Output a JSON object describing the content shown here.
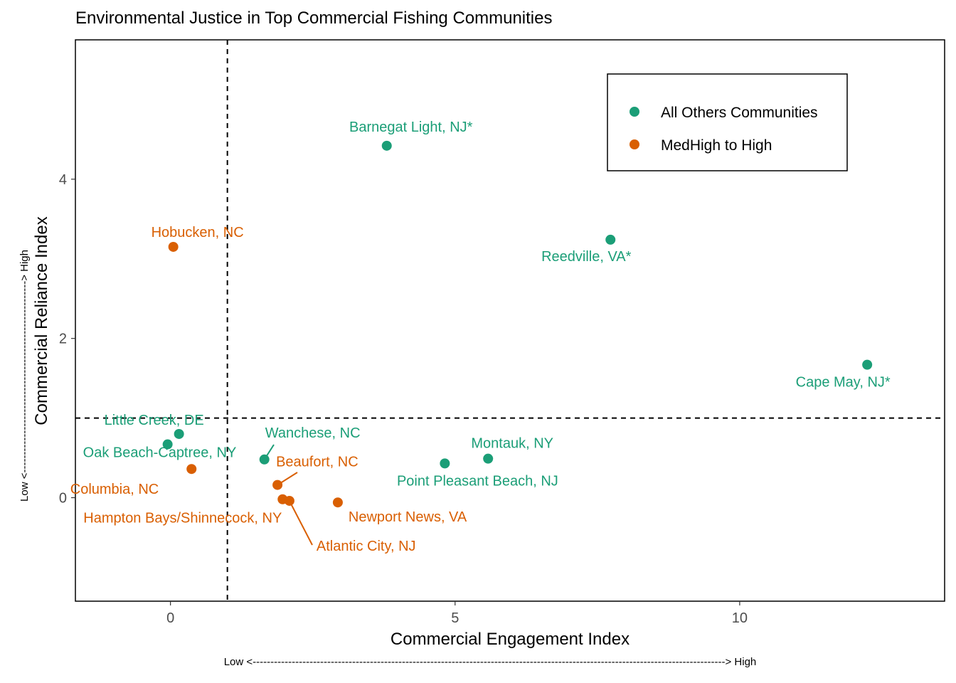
{
  "chart_data": {
    "type": "scatter",
    "title": "Environmental Justice in Top Commercial Fishing Communities",
    "xlabel": "Commercial Engagement Index",
    "ylabel": "Commercial Reliance Index",
    "x_note": "Low <-------------------------------------------------------------------------------------------------------------------------------------> High",
    "y_note": "Low <------------------------------------------------------> High",
    "xlim": [
      -1.67,
      13.6
    ],
    "ylim": [
      -1.3,
      5.75
    ],
    "xticks": [
      0,
      5,
      10
    ],
    "yticks": [
      0,
      2,
      4
    ],
    "xtick_labels": [
      "0",
      "5",
      "10"
    ],
    "ytick_labels": [
      "0",
      "2",
      "4"
    ],
    "reference_lines": {
      "x": 1,
      "y": 1,
      "style": "dashed"
    },
    "grid": false,
    "legend_position": "top-right",
    "colors": {
      "All Others Communities": "#1b9e77",
      "MedHigh to High": "#d95f02"
    },
    "legend": [
      "All Others Communities",
      "MedHigh to High"
    ],
    "points": [
      {
        "label": "Barnegat Light, NJ*",
        "group": "All Others Communities",
        "x": 3.8,
        "y": 4.42
      },
      {
        "label": "Reedville, VA*",
        "group": "All Others Communities",
        "x": 7.73,
        "y": 3.24
      },
      {
        "label": "Cape May, NJ*",
        "group": "All Others Communities",
        "x": 12.24,
        "y": 1.67
      },
      {
        "label": "Little Creek, DE",
        "group": "All Others Communities",
        "x": 0.15,
        "y": 0.8
      },
      {
        "label": "Oak Beach-Captree, NY",
        "group": "All Others Communities",
        "x": -0.05,
        "y": 0.67
      },
      {
        "label": "Wanchese, NC",
        "group": "All Others Communities",
        "x": 1.65,
        "y": 0.48
      },
      {
        "label": "Point Pleasant Beach, NJ",
        "group": "All Others Communities",
        "x": 4.82,
        "y": 0.43
      },
      {
        "label": "Montauk, NY",
        "group": "All Others Communities",
        "x": 5.58,
        "y": 0.49
      },
      {
        "label": "Hobucken, NC",
        "group": "MedHigh to High",
        "x": 0.05,
        "y": 3.15
      },
      {
        "label": "Columbia, NC",
        "group": "MedHigh to High",
        "x": 0.37,
        "y": 0.36
      },
      {
        "label": "Beaufort, NC",
        "group": "MedHigh to High",
        "x": 1.88,
        "y": 0.16
      },
      {
        "label": "Hampton Bays/Shinnecock, NY",
        "group": "MedHigh to High",
        "x": 1.97,
        "y": -0.02
      },
      {
        "label": "Atlantic City, NJ",
        "group": "MedHigh to High",
        "x": 2.09,
        "y": -0.04
      },
      {
        "label": "Newport News, VA",
        "group": "MedHigh to High",
        "x": 2.94,
        "y": -0.06
      }
    ]
  }
}
